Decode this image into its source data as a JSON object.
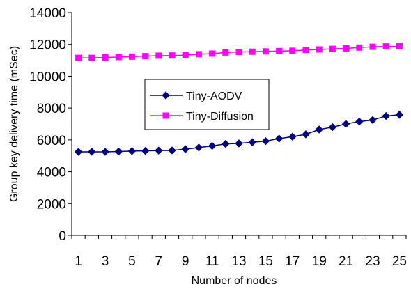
{
  "chart_data": {
    "type": "line",
    "xlabel": "Number of nodes",
    "ylabel": "Group key delivery time (mSec)",
    "ylim": [
      0,
      14000
    ],
    "yticks": [
      0,
      2000,
      4000,
      6000,
      8000,
      10000,
      12000,
      14000
    ],
    "x": [
      1,
      2,
      3,
      4,
      5,
      6,
      7,
      8,
      9,
      10,
      11,
      12,
      13,
      14,
      15,
      16,
      17,
      18,
      19,
      20,
      21,
      22,
      23,
      24,
      25
    ],
    "xtick_labels": [
      "1",
      "3",
      "5",
      "7",
      "9",
      "11",
      "13",
      "15",
      "17",
      "19",
      "21",
      "23",
      "25"
    ],
    "grid": false,
    "legend_position": "center",
    "series": [
      {
        "name": "Tiny-AODV",
        "color": "#000080",
        "marker": "diamond",
        "values": [
          5250,
          5250,
          5250,
          5270,
          5300,
          5310,
          5330,
          5340,
          5420,
          5520,
          5620,
          5750,
          5780,
          5850,
          5920,
          6080,
          6200,
          6350,
          6650,
          6800,
          7000,
          7150,
          7250,
          7500,
          7580
        ]
      },
      {
        "name": "Tiny-Diffusion",
        "color": "#ff00ff",
        "marker": "square",
        "values": [
          11150,
          11150,
          11180,
          11200,
          11230,
          11260,
          11290,
          11300,
          11320,
          11380,
          11420,
          11490,
          11520,
          11540,
          11560,
          11580,
          11600,
          11650,
          11680,
          11720,
          11750,
          11800,
          11850,
          11870,
          11880
        ]
      }
    ]
  }
}
